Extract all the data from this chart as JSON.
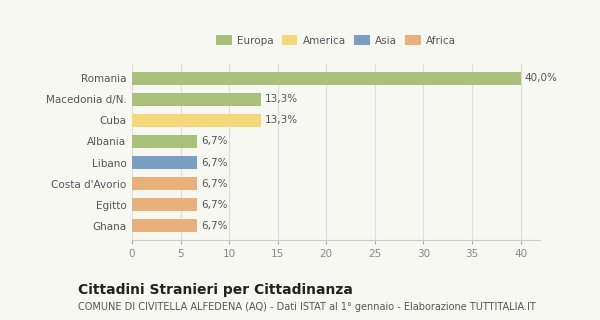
{
  "categories": [
    "Ghana",
    "Egitto",
    "Costa d'Avorio",
    "Libano",
    "Albania",
    "Cuba",
    "Macedonia d/N.",
    "Romania"
  ],
  "values": [
    6.7,
    6.7,
    6.7,
    6.7,
    6.7,
    13.3,
    13.3,
    40.0
  ],
  "colors": [
    "#e8b07a",
    "#e8b07a",
    "#e8b07a",
    "#7a9fc2",
    "#a8c07a",
    "#f5d87a",
    "#a8c07a",
    "#a8c07a"
  ],
  "labels": [
    "6,7%",
    "6,7%",
    "6,7%",
    "6,7%",
    "6,7%",
    "13,3%",
    "13,3%",
    "40,0%"
  ],
  "legend_labels": [
    "Europa",
    "America",
    "Asia",
    "Africa"
  ],
  "legend_colors": [
    "#a8c07a",
    "#f5d87a",
    "#7a9fc2",
    "#e8b07a"
  ],
  "title": "Cittadini Stranieri per Cittadinanza",
  "subtitle": "COMUNE DI CIVITELLA ALFEDENA (AQ) - Dati ISTAT al 1° gennaio - Elaborazione TUTTITALIA.IT",
  "xlim": [
    0,
    42
  ],
  "xticks": [
    0,
    5,
    10,
    15,
    20,
    25,
    30,
    35,
    40
  ],
  "background_color": "#f8f8f3",
  "plot_bg_color": "#ffffff",
  "bar_height": 0.6,
  "grid_color": "#dddddd",
  "label_fontsize": 7.5,
  "tick_fontsize": 7.5,
  "title_fontsize": 10,
  "subtitle_fontsize": 7
}
